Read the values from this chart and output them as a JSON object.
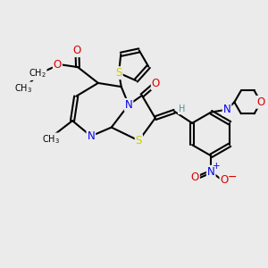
{
  "bg_color": "#ebebeb",
  "bond_color": "#000000",
  "bond_width": 1.5,
  "atom_colors": {
    "S": "#cccc00",
    "N": "#0000ee",
    "O": "#dd0000",
    "H": "#4a9090"
  },
  "font_size_atom": 8.5,
  "font_size_small": 7.0
}
